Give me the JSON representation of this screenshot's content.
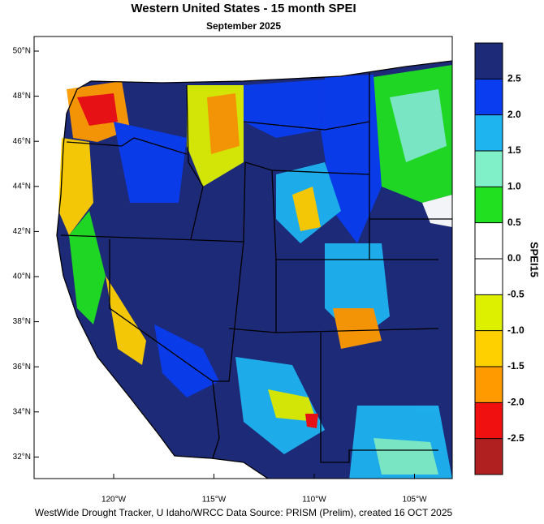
{
  "header": {
    "title": "Western United States - 15 month SPEI",
    "subtitle": "September 2025"
  },
  "map": {
    "lat_labels": [
      "50°N",
      "48°N",
      "46°N",
      "44°N",
      "42°N",
      "40°N",
      "38°N",
      "36°N",
      "34°N",
      "32°N"
    ],
    "lon_labels": [
      "120°W",
      "115°W",
      "110°W",
      "105°W"
    ]
  },
  "colorbar": {
    "title": "SPEI15",
    "ticks": [
      2.5,
      {
        "value": 2,
        "label": "2.0"
      },
      1.5,
      {
        "value": 1,
        "label": "1.0"
      },
      0.5,
      {
        "value": 0,
        "label": "0.0"
      },
      -0.5,
      {
        "value": -1,
        "label": "-1.0"
      },
      -1.5,
      {
        "value": -2,
        "label": "-2.0"
      },
      -2.5
    ],
    "colors": [
      "#1c2a78",
      "#0a3cf0",
      "#1eb4f0",
      "#80f0c8",
      "#20e020",
      "#ffffff",
      "#ffffff",
      "#dcf000",
      "#ffd000",
      "#ff9a00",
      "#f01010",
      "#b02020"
    ]
  },
  "footer": "WestWide Drought Tracker, U Idaho/WRCC Data Source: PRISM (Prelim), created 16 OCT 2025"
}
